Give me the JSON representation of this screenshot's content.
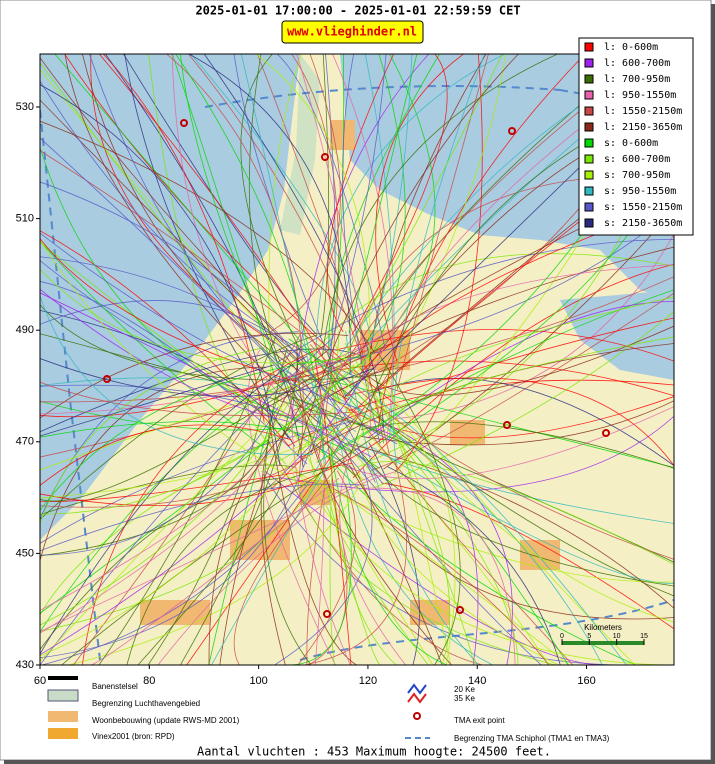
{
  "header": {
    "title": "2025-01-01 17:00:00 - 2025-01-01 22:59:59 CET",
    "badge": "www.vlieghinder.nl"
  },
  "map": {
    "xlim": [
      60,
      176
    ],
    "ylim": [
      430,
      539.5
    ],
    "xticks": [
      60,
      80,
      100,
      120,
      140,
      160
    ],
    "yticks": [
      430,
      450,
      470,
      490,
      510,
      530
    ]
  },
  "legend": [
    {
      "label": "l: 0-600m",
      "color": "#ff0000"
    },
    {
      "label": "l: 600-700m",
      "color": "#a020f0"
    },
    {
      "label": "l: 700-950m",
      "color": "#3a6e00"
    },
    {
      "label": "l: 950-1550m",
      "color": "#e860a8"
    },
    {
      "label": "l: 1550-2150m",
      "color": "#c84848"
    },
    {
      "label": "l: 2150-3650m",
      "color": "#8b2a18"
    },
    {
      "label": "s: 0-600m",
      "color": "#00d800"
    },
    {
      "label": "s: 600-700m",
      "color": "#78e800"
    },
    {
      "label": "s: 700-950m",
      "color": "#a8f000"
    },
    {
      "label": "s: 950-1550m",
      "color": "#30b8c0"
    },
    {
      "label": "s: 1550-2150m",
      "color": "#5858c8"
    },
    {
      "label": "s: 2150-3650m",
      "color": "#2a2a80"
    }
  ],
  "scale_bar": {
    "title": "Kilometers",
    "ticks": [
      0,
      5,
      10,
      15
    ]
  },
  "footer_legend": {
    "runways": "Banenstelsel",
    "airport": "Begrenzing Luchthavengebied",
    "urban": "Woonbebouwing (update RWS-MD 2001)",
    "vinex": "Vinex2001 (bron: RPD)",
    "ke20": "20 Ke",
    "ke35": "35 Ke",
    "exit": "TMA exit point",
    "tma": "Begrenzing TMA Schiphol  (TMA1 en TMA3)"
  },
  "footer": "Aantal vluchten : 453 Maximum hoogte: 24500 feet."
}
